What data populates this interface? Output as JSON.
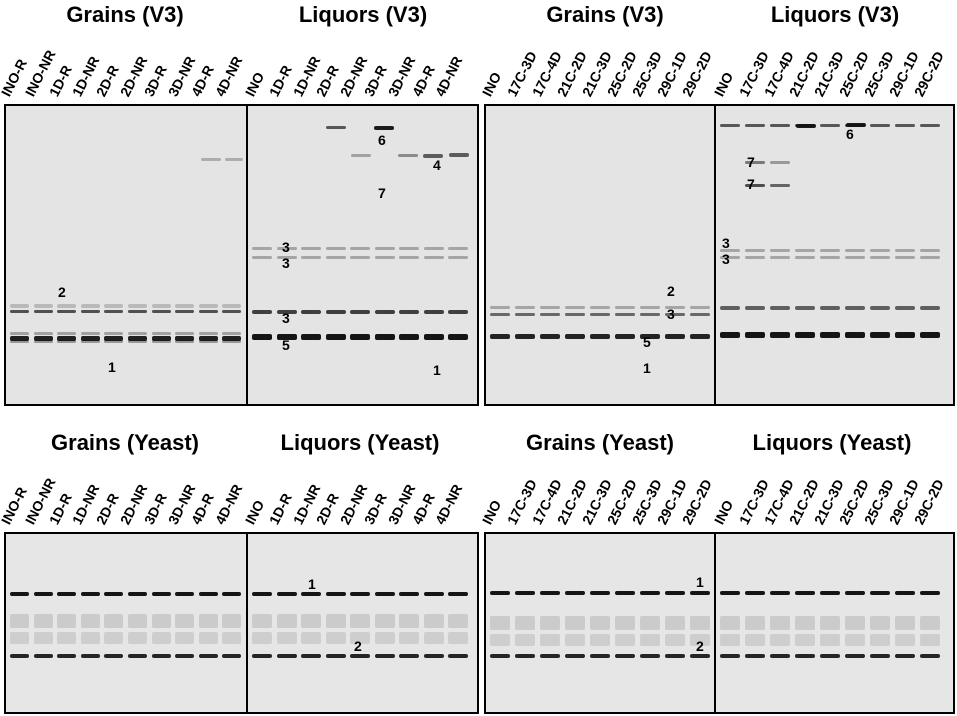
{
  "panels": {
    "top_left_grains": {
      "title": "Grains (V3)",
      "lanes": [
        "INO-R",
        "INO-NR",
        "1D-R",
        "1D-NR",
        "2D-R",
        "2D-NR",
        "3D-R",
        "3D-NR",
        "4D-R",
        "4D-NR"
      ]
    },
    "top_left_liquors": {
      "title": "Liquors (V3)",
      "lanes": [
        "INO",
        "1D-R",
        "1D-NR",
        "2D-R",
        "2D-NR",
        "3D-R",
        "3D-NR",
        "4D-R",
        "4D-NR"
      ]
    },
    "top_right_grains": {
      "title": "Grains (V3)",
      "lanes": [
        "INO",
        "17C-3D",
        "17C-4D",
        "21C-2D",
        "21C-3D",
        "25C-2D",
        "25C-3D",
        "29C-1D",
        "29C-2D"
      ]
    },
    "top_right_liquors": {
      "title": "Liquors (V3)",
      "lanes": [
        "INO",
        "17C-3D",
        "17C-4D",
        "21C-2D",
        "21C-3D",
        "25C-2D",
        "25C-3D",
        "29C-1D",
        "29C-2D"
      ]
    },
    "bottom_left_grains": {
      "title": "Grains (Yeast)",
      "lanes": [
        "INO-R",
        "INO-NR",
        "1D-R",
        "1D-NR",
        "2D-R",
        "2D-NR",
        "3D-R",
        "3D-NR",
        "4D-R",
        "4D-NR"
      ]
    },
    "bottom_left_liquors": {
      "title": "Liquors (Yeast)",
      "lanes": [
        "INO",
        "1D-R",
        "1D-NR",
        "2D-R",
        "2D-NR",
        "3D-R",
        "3D-NR",
        "4D-R",
        "4D-NR"
      ]
    },
    "bottom_right_grains": {
      "title": "Grains (Yeast)",
      "lanes": [
        "INO",
        "17C-3D",
        "17C-4D",
        "21C-2D",
        "21C-3D",
        "25C-2D",
        "25C-3D",
        "29C-1D",
        "29C-2D"
      ]
    },
    "bottom_right_liquors": {
      "title": "Liquors (Yeast)",
      "lanes": [
        "INO",
        "17C-3D",
        "17C-4D",
        "21C-2D",
        "21C-3D",
        "25C-2D",
        "25C-3D",
        "29C-1D",
        "29C-2D"
      ]
    }
  },
  "band_labels": {
    "tl_2": "2",
    "tl_1": "1",
    "tll_3a": "3",
    "tll_3b": "3",
    "tll_3c": "3",
    "tll_5": "5",
    "tll_6": "6",
    "tll_4": "4",
    "tll_7": "7",
    "tll_1": "1",
    "tr_2": "2",
    "tr_3": "3",
    "tr_5": "5",
    "tr_1": "1",
    "tr_3a": "3",
    "tr_3b": "3",
    "trl_6": "6",
    "trl_7a": "7",
    "trl_7b": "7",
    "bll_1": "1",
    "bll_2": "2",
    "br_1": "1",
    "br_2": "2"
  },
  "colors": {
    "gel_background": "#e6e6e6",
    "band_dark": "#1a1a1a",
    "border": "#000000"
  }
}
